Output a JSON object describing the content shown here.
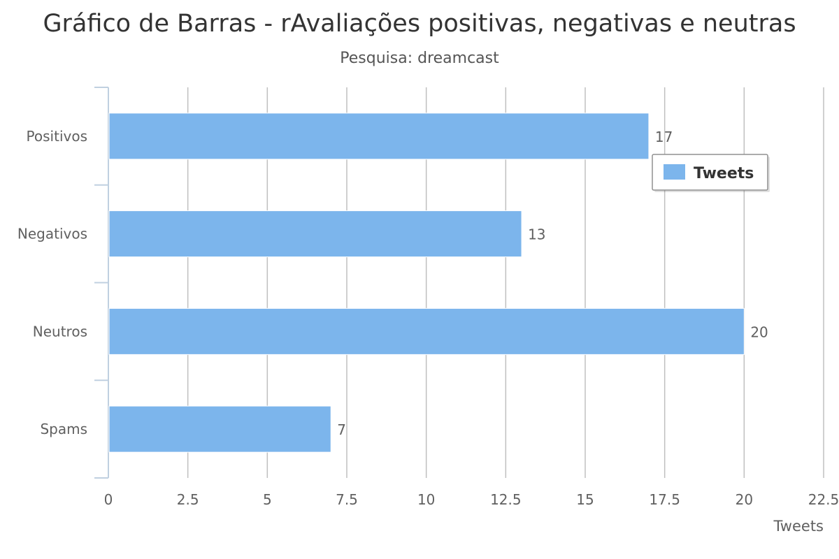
{
  "chart_data": {
    "type": "bar",
    "orientation": "horizontal",
    "title": "Gráfico de Barras - rAvaliações positivas, negativas e neutras",
    "subtitle": "Pesquisa: dreamcast",
    "categories": [
      "Positivos",
      "Negativos",
      "Neutros",
      "Spams"
    ],
    "series": [
      {
        "name": "Tweets",
        "values": [
          17,
          13,
          20,
          7
        ]
      }
    ],
    "xlabel": "Tweets",
    "ylabel": "",
    "xlim": [
      0,
      22.5
    ],
    "x_ticks": [
      "0",
      "2.5",
      "5",
      "7.5",
      "10",
      "12.5",
      "15",
      "17.5",
      "20",
      "22.5"
    ],
    "data_labels": [
      "17",
      "13",
      "20",
      "7"
    ],
    "grid": true,
    "legend": {
      "position": "top-right",
      "entries": [
        "Tweets"
      ]
    },
    "colors": {
      "bar": "#7cb5ec",
      "grid": "#c0c0c0",
      "axis": "#c0d0e0",
      "text": "#606060"
    }
  }
}
